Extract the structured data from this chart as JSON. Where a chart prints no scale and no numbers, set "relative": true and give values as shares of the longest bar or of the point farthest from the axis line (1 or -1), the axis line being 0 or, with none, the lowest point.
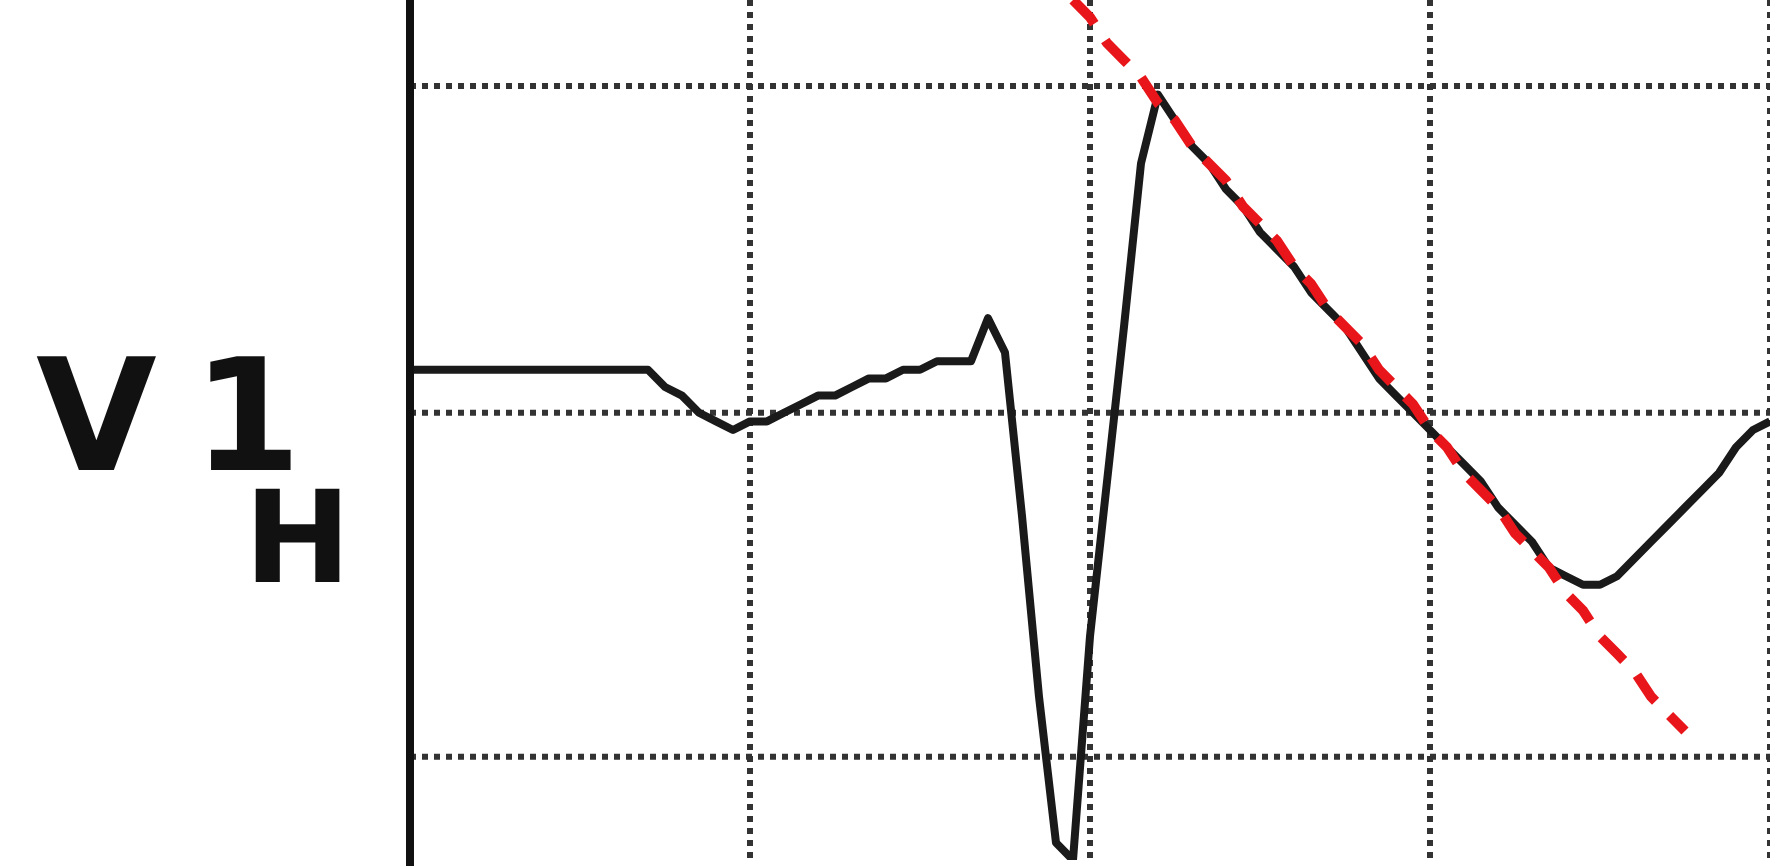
{
  "chart_data": {
    "type": "line",
    "relative": true,
    "categories": [
      null,
      null,
      null,
      null,
      null,
      null,
      null,
      null,
      null,
      null,
      null,
      null,
      null,
      null,
      null,
      null,
      null,
      null,
      null,
      null,
      null,
      null,
      null,
      null,
      null,
      null,
      null,
      null,
      null,
      null,
      null,
      null,
      null,
      null,
      null,
      null,
      null,
      null,
      null,
      null,
      null,
      null,
      null,
      null,
      null,
      null,
      null,
      null,
      null,
      null,
      null,
      null,
      null,
      null,
      null,
      null,
      null,
      null,
      null,
      null,
      null,
      null,
      null,
      null,
      null,
      null,
      null,
      null,
      null,
      null,
      null,
      null,
      null,
      null,
      null,
      null,
      null,
      null,
      null,
      null,
      null
    ],
    "series": [
      {
        "type": "line",
        "color": "#1a1a1a",
        "line_style": "solid",
        "values": [
          0.57,
          0.57,
          0.57,
          0.57,
          0.57,
          0.57,
          0.57,
          0.57,
          0.57,
          0.57,
          0.57,
          0.57,
          0.57,
          0.57,
          0.57,
          0.55,
          0.54,
          0.52,
          0.51,
          0.5,
          0.51,
          0.51,
          0.52,
          0.53,
          0.54,
          0.54,
          0.55,
          0.56,
          0.56,
          0.57,
          0.57,
          0.58,
          0.58,
          0.58,
          0.63,
          0.59,
          0.4,
          0.19,
          0.02,
          0,
          0.26,
          0.44,
          0.62,
          0.81,
          0.89,
          0.86,
          0.83,
          0.81,
          0.78,
          0.76,
          0.73,
          0.71,
          0.69,
          0.66,
          0.64,
          0.62,
          0.59,
          0.56,
          0.54,
          0.52,
          0.5,
          0.48,
          0.46,
          0.44,
          0.41,
          0.39,
          0.37,
          0.34,
          0.33,
          0.32,
          0.32,
          0.33,
          0.35,
          0.37,
          0.39,
          0.41,
          0.43,
          0.45,
          0.48,
          0.5,
          0.51
        ]
      },
      {
        "type": "line",
        "color": "#e8161b",
        "line_style": "dashed",
        "values": [
          null,
          null,
          null,
          null,
          null,
          null,
          null,
          null,
          null,
          null,
          null,
          null,
          null,
          null,
          null,
          null,
          null,
          null,
          null,
          null,
          null,
          null,
          null,
          null,
          null,
          null,
          null,
          null,
          null,
          null,
          null,
          null,
          null,
          null,
          null,
          null,
          null,
          null,
          null,
          1,
          0.98,
          0.95,
          0.93,
          0.91,
          0.88,
          0.86,
          0.83,
          0.81,
          0.79,
          0.76,
          0.74,
          0.72,
          0.69,
          0.67,
          0.64,
          0.62,
          0.6,
          0.57,
          0.55,
          0.53,
          0.5,
          0.48,
          0.45,
          0.43,
          0.41,
          0.38,
          0.36,
          0.34,
          0.31,
          0.29,
          0.26,
          0.24,
          0.22,
          0.19,
          0.17,
          0.15,
          null,
          null,
          null,
          null,
          null
        ]
      }
    ],
    "annotations": [
      "V1",
      "H"
    ],
    "grid": true,
    "marker": "none",
    "tick_labels": false
  }
}
